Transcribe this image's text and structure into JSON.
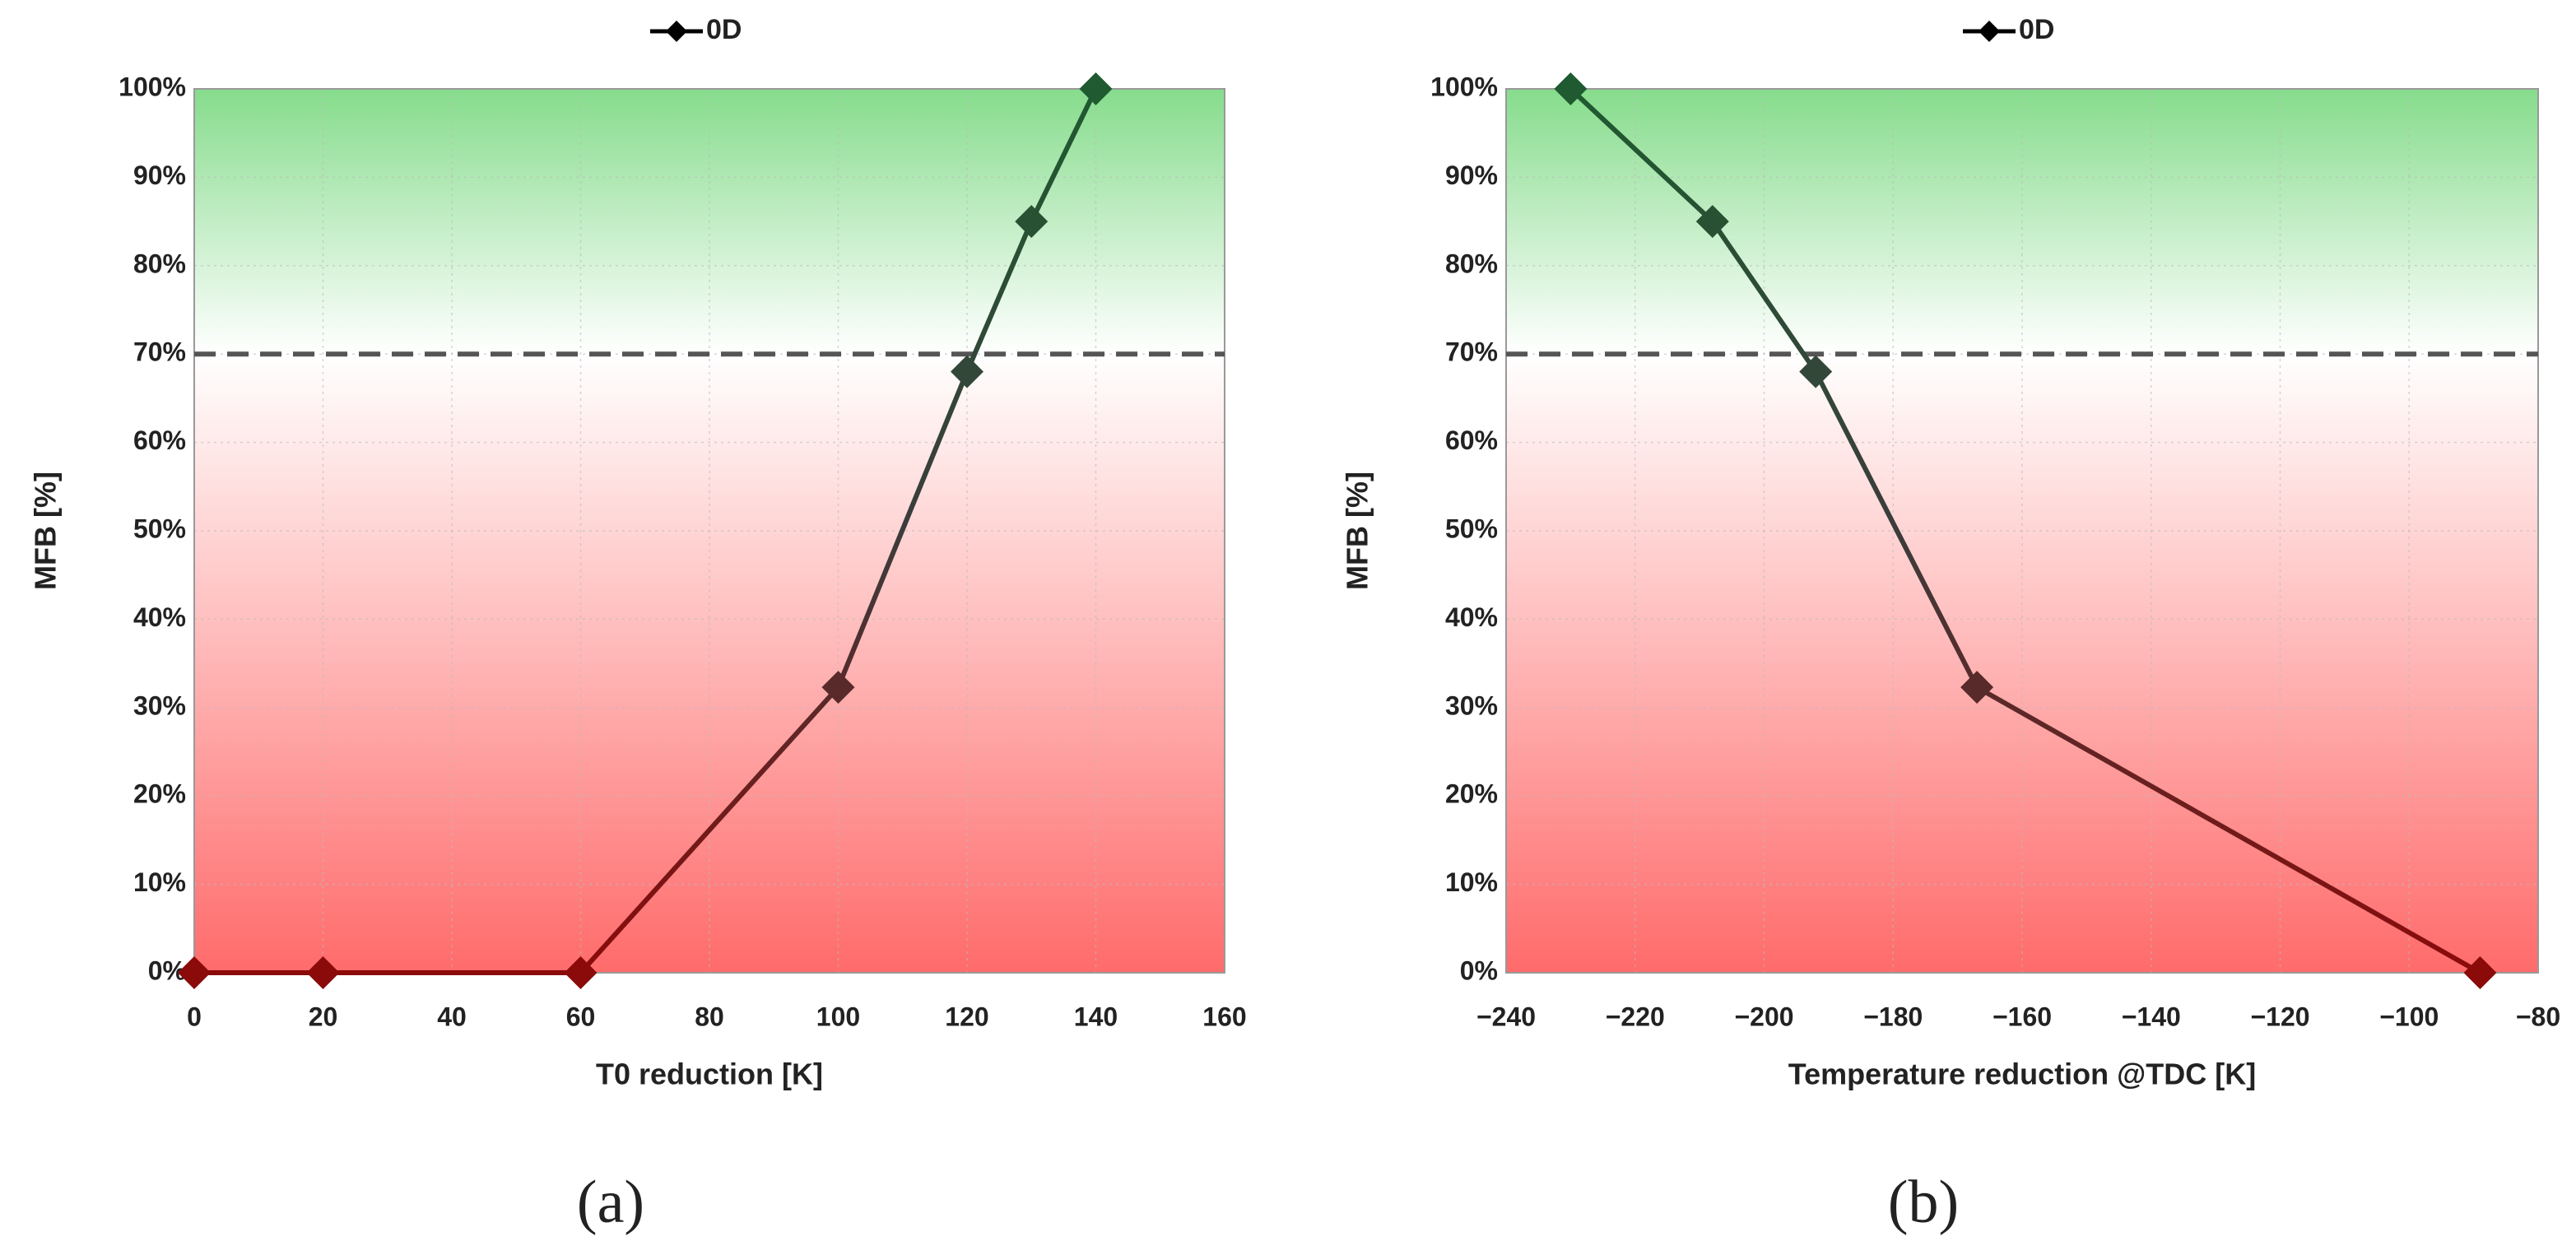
{
  "chart_data": [
    {
      "type": "line",
      "caption": "(a)",
      "xlabel": "T0 reduction [K]",
      "ylabel": "MFB [%]",
      "x": [
        0,
        20,
        60,
        100,
        120,
        130,
        140
      ],
      "series": [
        {
          "name": "0D",
          "color": "#000000",
          "values": [
            0,
            0,
            0,
            32.3,
            68,
            85,
            100
          ]
        }
      ],
      "xlim": [
        0,
        160
      ],
      "xticks": [
        0,
        20,
        40,
        60,
        80,
        100,
        120,
        140,
        160
      ],
      "ylim": [
        0,
        100
      ],
      "yticks": [
        {
          "value": 0,
          "label": "0%"
        },
        {
          "value": 10,
          "label": "10%"
        },
        {
          "value": 20,
          "label": "20%"
        },
        {
          "value": 30,
          "label": "30%"
        },
        {
          "value": 40,
          "label": "40%"
        },
        {
          "value": 50,
          "label": "50%"
        },
        {
          "value": 60,
          "label": "60%"
        },
        {
          "value": 70,
          "label": "70%"
        },
        {
          "value": 80,
          "label": "80%"
        },
        {
          "value": 90,
          "label": "90%"
        },
        {
          "value": 100,
          "label": "100%"
        }
      ],
      "threshold": 70,
      "grid": true,
      "legend": "top",
      "marker_colors": [
        "#8b0a0a",
        "#3c3c3c",
        "#1f5a30"
      ],
      "background_colors": [
        "#ff6b6b",
        "#ffffff",
        "#86dc8c"
      ]
    },
    {
      "type": "line",
      "caption": "(b)",
      "xlabel": "Temperature reduction @TDC [K]",
      "ylabel": "MFB [%]",
      "x": [
        -230,
        -208,
        -192,
        -167,
        -89
      ],
      "series": [
        {
          "name": "0D",
          "color": "#000000",
          "values": [
            100,
            85,
            68,
            32.3,
            0
          ]
        }
      ],
      "xlim": [
        -240,
        -80
      ],
      "xticks": [
        {
          "value": -240,
          "label": "−240"
        },
        {
          "value": -220,
          "label": "−220"
        },
        {
          "value": -200,
          "label": "−200"
        },
        {
          "value": -180,
          "label": "−180"
        },
        {
          "value": -160,
          "label": "−160"
        },
        {
          "value": -140,
          "label": "−140"
        },
        {
          "value": -120,
          "label": "−120"
        },
        {
          "value": -100,
          "label": "−100"
        },
        {
          "value": -80,
          "label": "−80"
        }
      ],
      "ylim": [
        0,
        100
      ],
      "yticks": [
        {
          "value": 0,
          "label": "0%"
        },
        {
          "value": 10,
          "label": "10%"
        },
        {
          "value": 20,
          "label": "20%"
        },
        {
          "value": 30,
          "label": "30%"
        },
        {
          "value": 40,
          "label": "40%"
        },
        {
          "value": 50,
          "label": "50%"
        },
        {
          "value": 60,
          "label": "60%"
        },
        {
          "value": 70,
          "label": "70%"
        },
        {
          "value": 80,
          "label": "80%"
        },
        {
          "value": 90,
          "label": "90%"
        },
        {
          "value": 100,
          "label": "100%"
        }
      ],
      "threshold": 70,
      "grid": true,
      "legend": "top",
      "marker_colors": [
        "#8b0a0a",
        "#3c3c3c",
        "#1f5a30"
      ],
      "background_colors": [
        "#ff6b6b",
        "#ffffff",
        "#86dc8c"
      ]
    }
  ]
}
